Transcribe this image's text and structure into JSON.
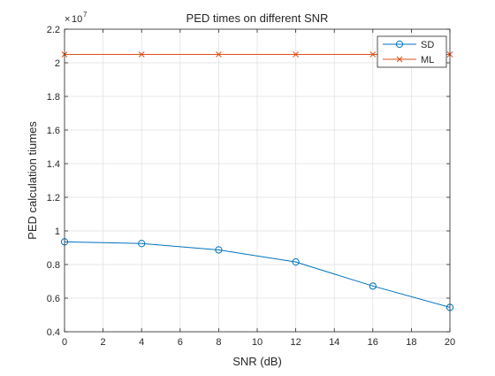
{
  "chart_data": {
    "type": "line",
    "title": "PED times on different SNR",
    "xlabel": "SNR (dB)",
    "ylabel": "PED calculation tiumes",
    "y_exponent_label": "10",
    "y_exponent_power": "7",
    "xlim": [
      0,
      20
    ],
    "ylim": [
      0.4,
      2.2
    ],
    "x_ticks": [
      0,
      2,
      4,
      6,
      8,
      10,
      12,
      14,
      16,
      18,
      20
    ],
    "x_tick_labels": [
      "0",
      "2",
      "4",
      "6",
      "8",
      "10",
      "12",
      "14",
      "16",
      "18",
      "20"
    ],
    "y_ticks": [
      0.4,
      0.6,
      0.8,
      1.0,
      1.2,
      1.4,
      1.6,
      1.8,
      2.0,
      2.2
    ],
    "y_tick_labels": [
      "0.4",
      "0.6",
      "0.8",
      "1",
      "1.2",
      "1.4",
      "1.6",
      "1.8",
      "2",
      "2.2"
    ],
    "grid": true,
    "legend_position": "top-right",
    "series": [
      {
        "name": "SD",
        "marker": "circle",
        "color": "#0072BD",
        "x": [
          0,
          4,
          8,
          12,
          16,
          20
        ],
        "y": [
          0.935,
          0.925,
          0.887,
          0.815,
          0.672,
          0.545
        ]
      },
      {
        "name": "ML",
        "marker": "x",
        "color": "#D95319",
        "x": [
          0,
          4,
          8,
          12,
          16,
          20
        ],
        "y": [
          2.05,
          2.05,
          2.05,
          2.05,
          2.05,
          2.05
        ]
      }
    ]
  }
}
